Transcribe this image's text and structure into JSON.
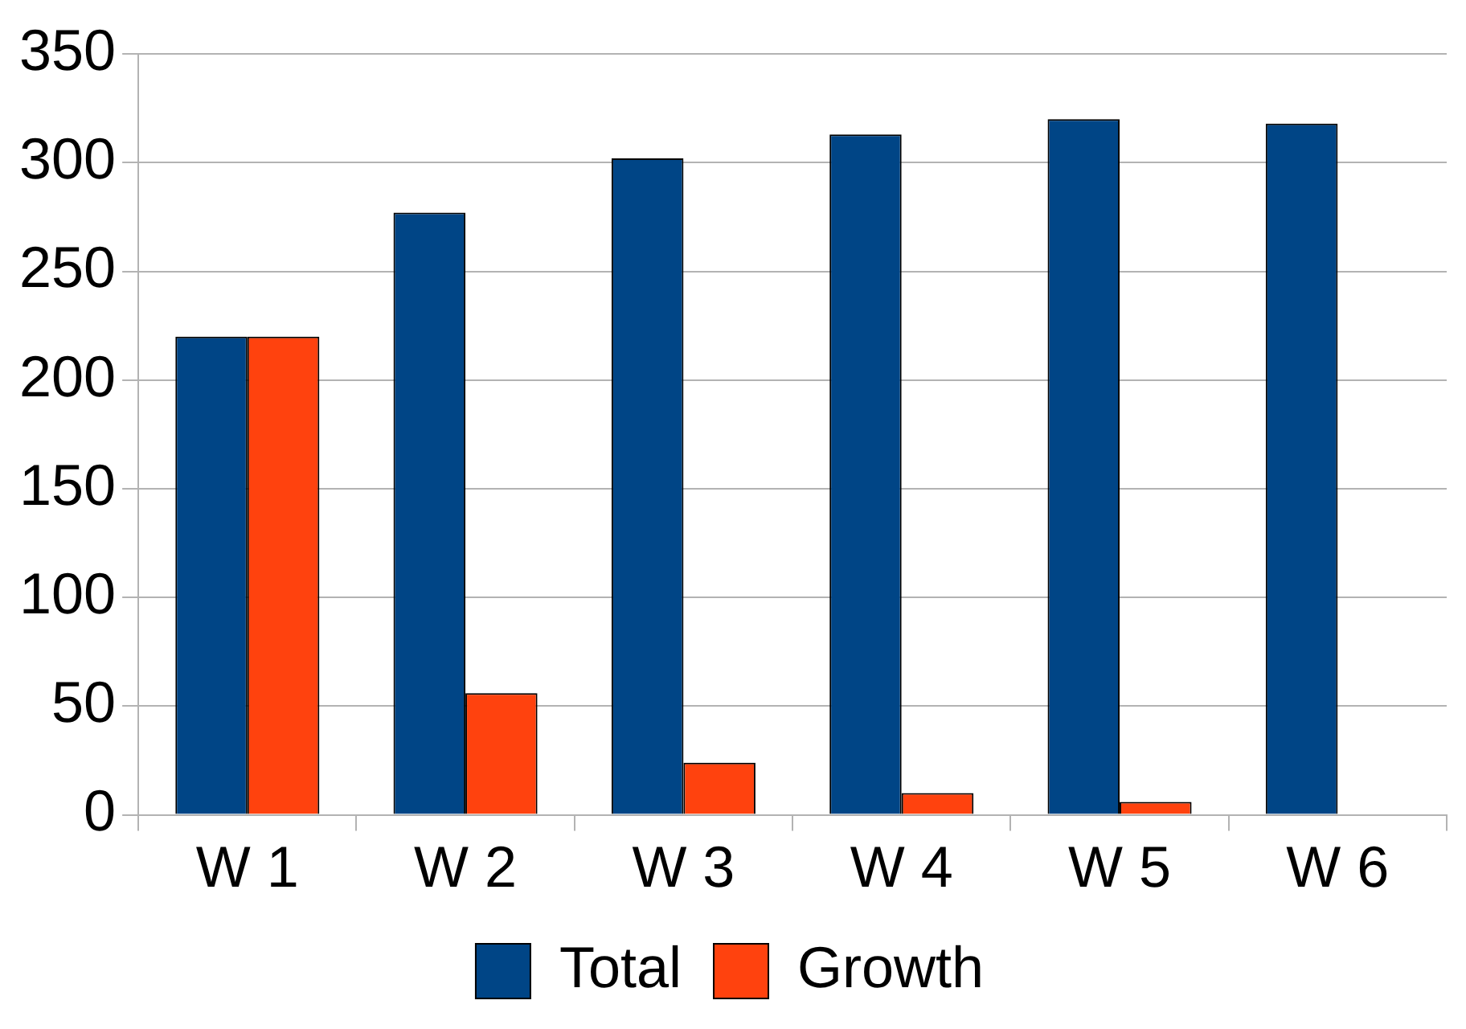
{
  "chart_data": {
    "type": "bar",
    "categories": [
      "W 1",
      "W 2",
      "W 3",
      "W 4",
      "W 5",
      "W 6"
    ],
    "series": [
      {
        "name": "Total",
        "color": "#004586",
        "values": [
          220,
          277,
          302,
          313,
          320,
          318
        ]
      },
      {
        "name": "Growth",
        "color": "#ff420e",
        "values": [
          220,
          56,
          24,
          10,
          6,
          null
        ]
      }
    ],
    "ylim": [
      0,
      350
    ],
    "yticks": [
      0,
      50,
      100,
      150,
      200,
      250,
      300,
      350
    ],
    "grid": "y",
    "legend": "bottom"
  }
}
